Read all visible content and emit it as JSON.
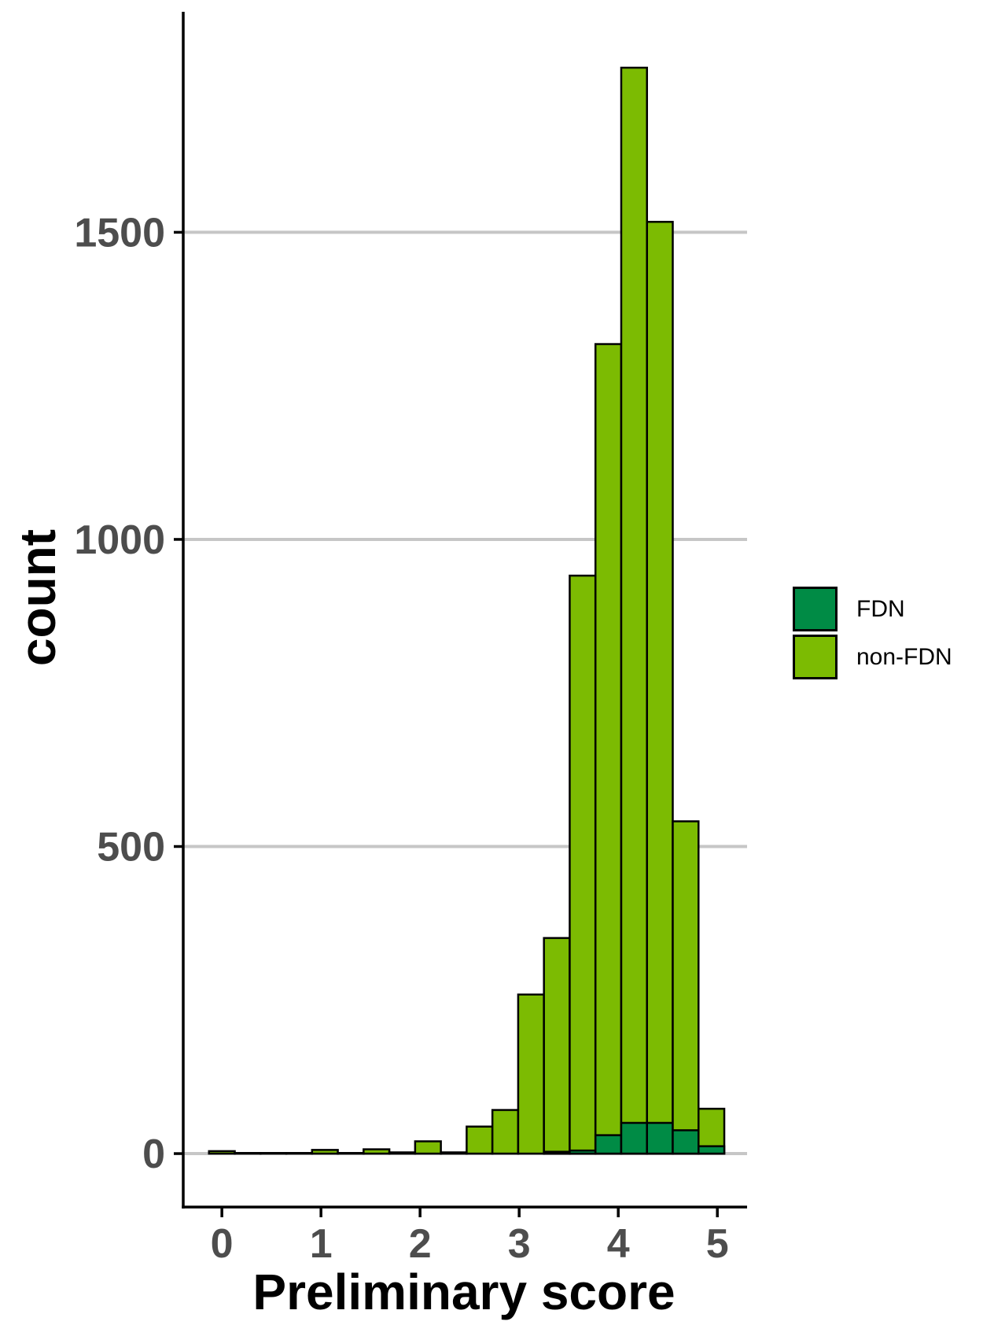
{
  "figure": {
    "y_axis_title": "count",
    "x_axis_title": "Preliminary score",
    "legend": {
      "items": [
        {
          "label": "FDN",
          "color": "#008B45"
        },
        {
          "label": "non-FDN",
          "color": "#7CBB02"
        }
      ]
    }
  },
  "chart_data": {
    "type": "bar",
    "subtype": "stacked_histogram",
    "title": "",
    "xlabel": "Preliminary score",
    "ylabel": "count",
    "legend_position": "right",
    "grid": "horizontal",
    "x_ticks": [
      0,
      1,
      2,
      3,
      4,
      5
    ],
    "y_ticks": [
      0,
      500,
      1000,
      1500
    ],
    "xlim": [
      -0.39,
      5.3
    ],
    "ylim": [
      -87,
      1859
    ],
    "bin_width": 0.26,
    "series_names": [
      "FDN",
      "non-FDN"
    ],
    "colors": {
      "FDN": "#008B45",
      "non_FDN": "#7CBB02",
      "bar_outline": "#000000",
      "gridline": "#C6C6C6",
      "axis_line": "#000000",
      "tick_label": "#4D4D4D",
      "axis_title": "#000000"
    },
    "bins": [
      {
        "x0": -0.13,
        "x1": 0.13,
        "FDN": 0,
        "non_FDN": 4
      },
      {
        "x0": 0.13,
        "x1": 0.39,
        "FDN": 0,
        "non_FDN": 1
      },
      {
        "x0": 0.39,
        "x1": 0.65,
        "FDN": 0,
        "non_FDN": 1
      },
      {
        "x0": 0.65,
        "x1": 0.91,
        "FDN": 0,
        "non_FDN": 1
      },
      {
        "x0": 0.91,
        "x1": 1.17,
        "FDN": 0,
        "non_FDN": 6
      },
      {
        "x0": 1.17,
        "x1": 1.43,
        "FDN": 0,
        "non_FDN": 1
      },
      {
        "x0": 1.43,
        "x1": 1.69,
        "FDN": 0,
        "non_FDN": 7
      },
      {
        "x0": 1.69,
        "x1": 1.95,
        "FDN": 0,
        "non_FDN": 2
      },
      {
        "x0": 1.95,
        "x1": 2.21,
        "FDN": 0,
        "non_FDN": 20
      },
      {
        "x0": 2.21,
        "x1": 2.47,
        "FDN": 0,
        "non_FDN": 2
      },
      {
        "x0": 2.47,
        "x1": 2.73,
        "FDN": 0,
        "non_FDN": 44
      },
      {
        "x0": 2.73,
        "x1": 2.99,
        "FDN": 0,
        "non_FDN": 71
      },
      {
        "x0": 2.99,
        "x1": 3.25,
        "FDN": 0,
        "non_FDN": 259
      },
      {
        "x0": 3.25,
        "x1": 3.51,
        "FDN": 3,
        "non_FDN": 348
      },
      {
        "x0": 3.51,
        "x1": 3.77,
        "FDN": 5,
        "non_FDN": 936
      },
      {
        "x0": 3.77,
        "x1": 4.03,
        "FDN": 30,
        "non_FDN": 1288
      },
      {
        "x0": 4.03,
        "x1": 4.29,
        "FDN": 50,
        "non_FDN": 1718
      },
      {
        "x0": 4.29,
        "x1": 4.55,
        "FDN": 50,
        "non_FDN": 1467
      },
      {
        "x0": 4.55,
        "x1": 4.81,
        "FDN": 38,
        "non_FDN": 503
      },
      {
        "x0": 4.81,
        "x1": 5.07,
        "FDN": 12,
        "non_FDN": 61
      }
    ]
  }
}
